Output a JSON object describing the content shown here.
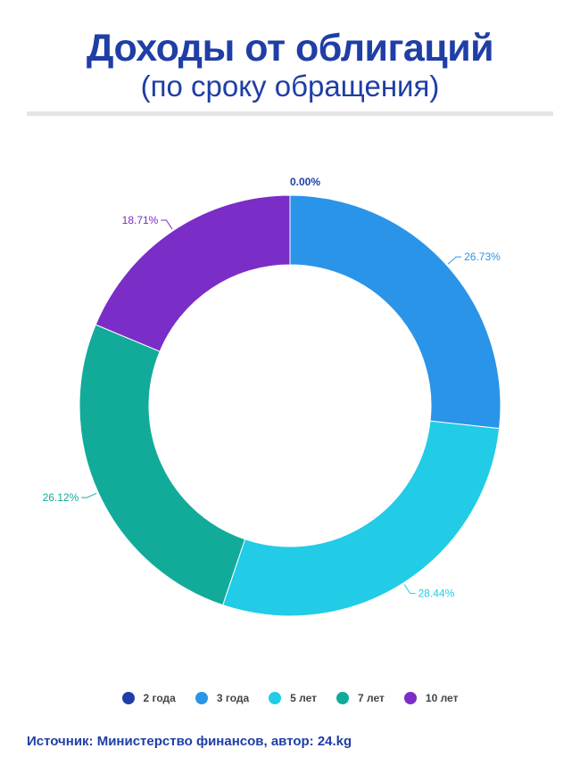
{
  "title": "Доходы от облигаций",
  "subtitle": "(по сроку обращения)",
  "source": "Источник: Министерство финансов, автор: 24.kg",
  "chart_data": {
    "type": "pie",
    "donut": true,
    "categories": [
      "2 года",
      "3 года",
      "5 лет",
      "7 лет",
      "10 лет"
    ],
    "values": [
      0.0,
      26.73,
      28.44,
      26.12,
      18.71
    ],
    "labels": [
      "0.00%",
      "26.73%",
      "28.44%",
      "26.12%",
      "18.71%"
    ],
    "colors": [
      "#1f3ea6",
      "#2a94e8",
      "#22cbe6",
      "#12ab9a",
      "#7a2dc7"
    ],
    "legend_position": "bottom"
  }
}
